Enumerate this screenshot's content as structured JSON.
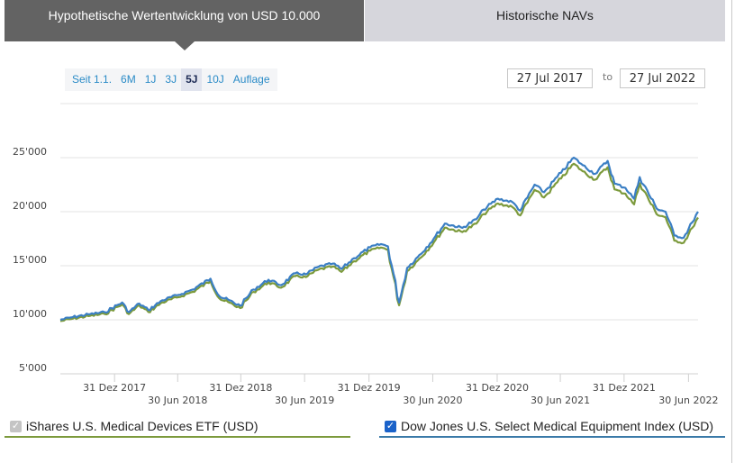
{
  "tabs": [
    {
      "label": "Hypothetische Wertentwicklung von USD 10.000",
      "active": true
    },
    {
      "label": "Historische NAVs",
      "active": false
    }
  ],
  "ranges": [
    {
      "label": "Seit 1.1.",
      "active": false
    },
    {
      "label": "6M",
      "active": false
    },
    {
      "label": "1J",
      "active": false
    },
    {
      "label": "3J",
      "active": false
    },
    {
      "label": "5J",
      "active": true
    },
    {
      "label": "10J",
      "active": false
    },
    {
      "label": "Auflage",
      "active": false
    }
  ],
  "date_range": {
    "from": "27 Jul 2017",
    "separator": "to",
    "to": "27 Jul 2022"
  },
  "legend": {
    "etf": {
      "label": "iShares U.S. Medical Devices ETF (USD)",
      "checked": true,
      "disabled": true,
      "color": "#7c9a3c"
    },
    "index": {
      "label": "Dow Jones U.S. Select Medical Equipment Index (USD)",
      "checked": true,
      "color": "#3a7aa8"
    }
  },
  "chart_data": {
    "type": "line",
    "title": "Hypothetische Wertentwicklung von USD 10.000",
    "xlabel": "",
    "ylabel": "",
    "ylim": [
      5000,
      30000
    ],
    "y_ticks": [
      "5'000",
      "10'000",
      "15'000",
      "20'000",
      "25'000"
    ],
    "y_tick_values": [
      5000,
      10000,
      15000,
      20000,
      25000
    ],
    "x_ticks": [
      "31 Dez 2017",
      "30 Jun 2018",
      "31 Dez 2018",
      "30 Jun 2019",
      "31 Dez 2019",
      "30 Jun 2020",
      "31 Dez 2020",
      "30 Jun 2021",
      "31 Dez 2021",
      "30 Jun 2022"
    ],
    "x_tick_pos": [
      0.085,
      0.184,
      0.283,
      0.383,
      0.484,
      0.584,
      0.685,
      0.784,
      0.884,
      0.985
    ],
    "grid": true,
    "legend_position": "bottom",
    "x": [
      "2017-07-27",
      "2017-09-01",
      "2017-10-15",
      "2017-12-01",
      "2018-01-20",
      "2018-02-08",
      "2018-03-10",
      "2018-04-05",
      "2018-05-15",
      "2018-06-30",
      "2018-08-10",
      "2018-09-30",
      "2018-10-25",
      "2018-12-24",
      "2019-01-31",
      "2019-03-15",
      "2019-04-20",
      "2019-05-31",
      "2019-06-30",
      "2019-08-05",
      "2019-09-15",
      "2019-10-10",
      "2019-11-15",
      "2019-12-31",
      "2020-01-31",
      "2020-02-20",
      "2020-03-23",
      "2020-04-15",
      "2020-05-15",
      "2020-06-30",
      "2020-08-01",
      "2020-09-20",
      "2020-10-30",
      "2020-11-20",
      "2020-12-31",
      "2021-02-10",
      "2021-03-05",
      "2021-04-15",
      "2021-05-12",
      "2021-06-30",
      "2021-08-05",
      "2021-08-31",
      "2021-10-05",
      "2021-11-10",
      "2021-11-30",
      "2021-12-31",
      "2022-01-25",
      "2022-02-10",
      "2022-03-30",
      "2022-04-25",
      "2022-05-20",
      "2022-06-16",
      "2022-07-10",
      "2022-07-27"
    ],
    "series": [
      {
        "name": "Dow Jones U.S. Select Medical Equipment Index (USD)",
        "color": "#3a7aa8",
        "values": [
          10000,
          10250,
          10500,
          10700,
          11600,
          10700,
          11500,
          10900,
          11800,
          12300,
          12800,
          13800,
          12200,
          11300,
          12800,
          13700,
          13200,
          14300,
          14200,
          14900,
          15200,
          14700,
          15700,
          16700,
          17000,
          16800,
          11600,
          14800,
          15800,
          17500,
          18900,
          18500,
          19300,
          20200,
          21200,
          20900,
          20100,
          22500,
          21800,
          23600,
          25000,
          24300,
          23500,
          24700,
          22600,
          22200,
          21200,
          23200,
          20300,
          20000,
          17800,
          17600,
          19000,
          20000
        ]
      },
      {
        "name": "iShares U.S. Medical Devices ETF (USD)",
        "color": "#7c9a3c",
        "values": [
          10000,
          10230,
          10470,
          10660,
          11550,
          10650,
          11440,
          10840,
          11730,
          12220,
          12710,
          13700,
          12110,
          11210,
          12700,
          13590,
          13090,
          14170,
          14070,
          14760,
          15050,
          14550,
          15540,
          16520,
          16810,
          16600,
          11470,
          14620,
          15600,
          17270,
          18650,
          18240,
          19020,
          19900,
          20880,
          20570,
          19780,
          22140,
          21440,
          23200,
          24560,
          23860,
          23080,
          24240,
          22180,
          21780,
          20800,
          22760,
          19910,
          19610,
          17450,
          17250,
          18610,
          19580
        ]
      }
    ]
  }
}
